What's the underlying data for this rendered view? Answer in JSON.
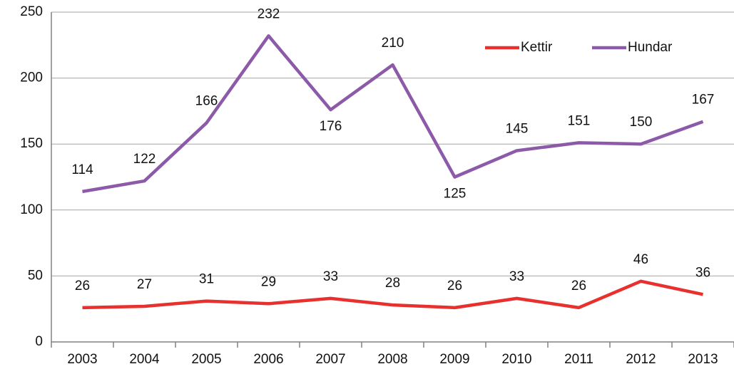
{
  "chart_data": {
    "type": "line",
    "categories": [
      "2003",
      "2004",
      "2005",
      "2006",
      "2007",
      "2008",
      "2009",
      "2010",
      "2011",
      "2012",
      "2013"
    ],
    "series": [
      {
        "name": "Kettir",
        "color": "#e8312f",
        "values": [
          26,
          27,
          31,
          29,
          33,
          28,
          26,
          33,
          26,
          46,
          36
        ]
      },
      {
        "name": "Hundar",
        "color": "#8c5aa8",
        "values": [
          114,
          122,
          166,
          232,
          176,
          210,
          125,
          145,
          151,
          150,
          167
        ]
      }
    ],
    "ylim": [
      0,
      250
    ],
    "yticks": [
      0,
      50,
      100,
      150,
      200,
      250
    ],
    "grid": true,
    "legend": "top-right"
  }
}
